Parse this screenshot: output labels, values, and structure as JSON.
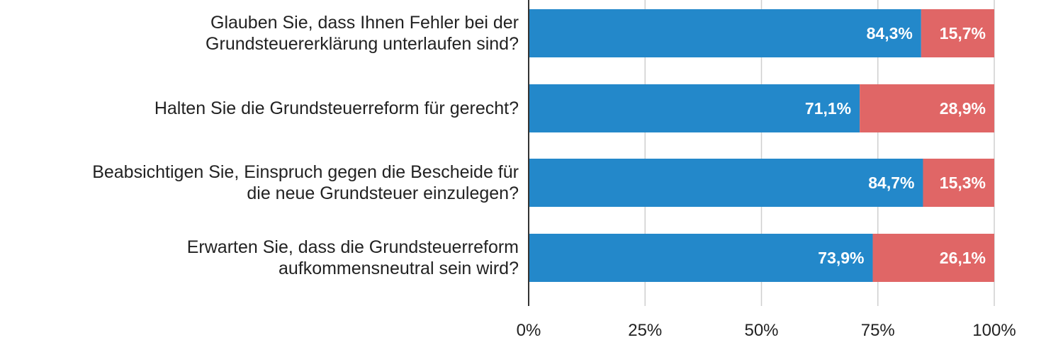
{
  "chart_data": {
    "type": "bar",
    "orientation": "horizontal",
    "stacked": true,
    "title": "",
    "xlabel": "",
    "ylabel": "",
    "xlim": [
      0,
      100
    ],
    "x_unit": "%",
    "grid": true,
    "legend": "none",
    "categories": [
      [
        "Glauben Sie, dass Ihnen Fehler bei der",
        "Grundsteuererklärung unterlaufen sind?"
      ],
      [
        "Halten Sie die Grundsteuerreform für gerecht?"
      ],
      [
        "Beabsichtigen Sie, Einspruch gegen die Bescheide für",
        "die neue Grundsteuer einzulegen?"
      ],
      [
        "Erwarten Sie, dass die Grundsteuerreform",
        "aufkommensneutral sein wird?"
      ]
    ],
    "series": [
      {
        "color": "#2388CA",
        "values": [
          84.3,
          71.1,
          84.7,
          73.9
        ],
        "labels": [
          "84,3%",
          "71,1%",
          "84,7%",
          "73,9%"
        ]
      },
      {
        "color": "#E06666",
        "values": [
          15.7,
          28.9,
          15.3,
          26.1
        ],
        "labels": [
          "15,7%",
          "28,9%",
          "15,3%",
          "26,1%"
        ]
      }
    ],
    "x_ticks": [
      {
        "value": 0,
        "label": "0%"
      },
      {
        "value": 25,
        "label": "25%"
      },
      {
        "value": 50,
        "label": "50%"
      },
      {
        "value": 75,
        "label": "75%"
      },
      {
        "value": 100,
        "label": "100%"
      }
    ]
  }
}
